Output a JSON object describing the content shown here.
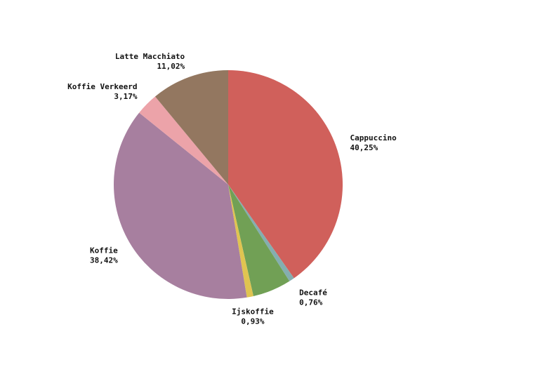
{
  "chart_data": {
    "type": "pie",
    "slices": [
      {
        "label": "Cappuccino",
        "value": 40.25,
        "value_label": "40,25%",
        "color": "#d0605b"
      },
      {
        "label": "Decafé",
        "value": 0.76,
        "value_label": "0,76%",
        "color": "#84aeb0"
      },
      {
        "label": "",
        "value": 5.45,
        "value_label": "",
        "color": "#71a055"
      },
      {
        "label": "Ijskoffie",
        "value": 0.93,
        "value_label": "0,93%",
        "color": "#e0c451"
      },
      {
        "label": "Koffie",
        "value": 38.42,
        "value_label": "38,42%",
        "color": "#a77f9f"
      },
      {
        "label": "Koffie Verkeerd",
        "value": 3.17,
        "value_label": "3,17%",
        "color": "#eca3a9"
      },
      {
        "label": "Latte Macchiato",
        "value": 11.02,
        "value_label": "11,02%",
        "color": "#937760"
      }
    ],
    "start_angle": "12 o'clock",
    "direction": "clockwise",
    "legend": "none"
  }
}
